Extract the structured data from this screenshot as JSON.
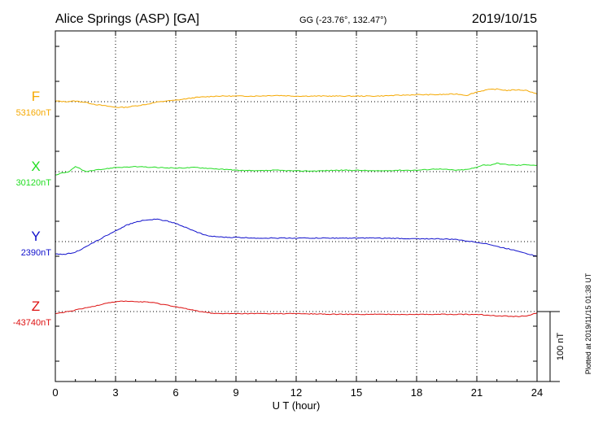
{
  "header": {
    "station": "Alice Springs (ASP)  [GA]",
    "coords": "GG (-23.76°, 132.47°)",
    "date": "2019/10/15"
  },
  "footer": {
    "plotted": "Plotted at 2019/11/15 01:38 UT"
  },
  "scale_bar": {
    "label": "100 nT",
    "value_nT": 100
  },
  "colors": {
    "F": "#f5a800",
    "X": "#22dd22",
    "Y": "#1010cc",
    "Z": "#dd1010",
    "axis": "#000000"
  },
  "chart_data": {
    "type": "line",
    "xlabel": "U T (hour)",
    "xlim": [
      0,
      24
    ],
    "xticks": [
      0,
      3,
      6,
      9,
      12,
      15,
      18,
      21,
      24
    ],
    "x_tick_labels": [
      "0",
      "3",
      "6",
      "9",
      "12",
      "15",
      "18",
      "21",
      "24"
    ],
    "grid": true,
    "nT_per_100": 100,
    "series": [
      {
        "name": "F",
        "baseline_label": "53160nT",
        "baseline_nT": 53160,
        "x": [
          0,
          0.5,
          1,
          1.5,
          2,
          2.5,
          3,
          3.5,
          4,
          4.5,
          5,
          5.5,
          6,
          6.5,
          7,
          7.5,
          8,
          9,
          10,
          11,
          12,
          13,
          14,
          15,
          16,
          17,
          18,
          19,
          20,
          20.5,
          21,
          21.5,
          22,
          22.5,
          23,
          23.5,
          24
        ],
        "values_nT": [
          1,
          0,
          1,
          -1,
          -4,
          -6,
          -8,
          -8,
          -6,
          -4,
          -1,
          1,
          2,
          4,
          6,
          7,
          8,
          8,
          8,
          9,
          8,
          8,
          8,
          8,
          8,
          9,
          10,
          10,
          11,
          9,
          14,
          17,
          18,
          16,
          17,
          16,
          11
        ]
      },
      {
        "name": "X",
        "baseline_label": "30120nT",
        "baseline_nT": 30120,
        "x": [
          0,
          0.3,
          0.7,
          1,
          1.2,
          1.5,
          2,
          3,
          4,
          5,
          6,
          7,
          8,
          9,
          10,
          11,
          12,
          13,
          14,
          15,
          16,
          17,
          18,
          19,
          20,
          20.5,
          21,
          21.3,
          21.6,
          22,
          22.5,
          23,
          23.5,
          24
        ],
        "values_nT": [
          -5,
          -2,
          0,
          7,
          5,
          0,
          2,
          6,
          7,
          6,
          5,
          6,
          4,
          2,
          1,
          2,
          1,
          1,
          2,
          2,
          1,
          2,
          2,
          4,
          2,
          3,
          6,
          10,
          9,
          12,
          10,
          9,
          10,
          9
        ]
      },
      {
        "name": "Y",
        "baseline_label": "2390nT",
        "baseline_nT": 2390,
        "x": [
          0,
          0.5,
          1,
          1.5,
          2,
          2.5,
          3,
          3.5,
          4,
          4.5,
          5,
          5.5,
          6,
          6.5,
          7,
          7.5,
          8,
          8.5,
          9,
          10,
          12,
          14,
          16,
          18,
          19,
          20,
          20.5,
          21,
          21.5,
          22,
          22.5,
          23,
          23.5,
          24
        ],
        "values_nT": [
          -18,
          -18,
          -15,
          -8,
          0,
          8,
          15,
          23,
          28,
          31,
          32,
          30,
          26,
          20,
          14,
          9,
          7,
          6,
          6,
          5,
          5,
          5,
          5,
          4,
          4,
          3,
          1,
          -1,
          -3,
          -7,
          -10,
          -13,
          -17,
          -21
        ]
      },
      {
        "name": "Z",
        "baseline_label": "-43740nT",
        "baseline_nT": -43740,
        "x": [
          0,
          0.5,
          1,
          1.5,
          2,
          2.5,
          3,
          3.5,
          4,
          4.5,
          5,
          6,
          7,
          8,
          9,
          10,
          12,
          14,
          16,
          18,
          20,
          21,
          22,
          23,
          23.5,
          24
        ],
        "values_nT": [
          -3,
          -1,
          2,
          5,
          8,
          12,
          14,
          15,
          14,
          14,
          12,
          7,
          1,
          -3,
          -3,
          -3,
          -3,
          -4,
          -4,
          -4,
          -4,
          -4,
          -6,
          -7,
          -6,
          -2
        ]
      }
    ]
  }
}
